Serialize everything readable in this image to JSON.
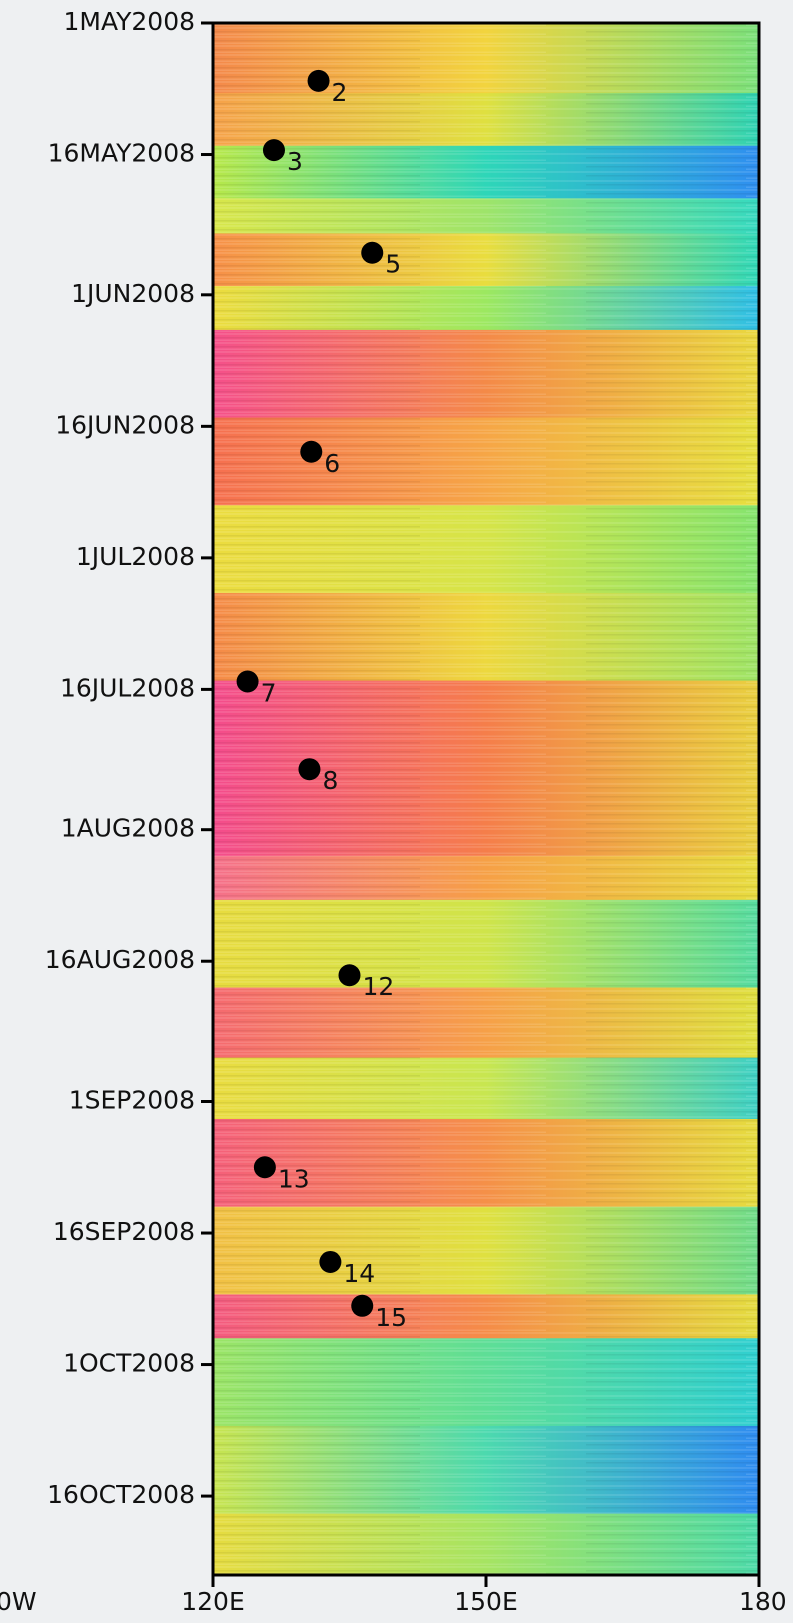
{
  "chart_data": {
    "type": "scatter",
    "x_cut_label": "0W",
    "x": [
      131.6,
      126.7,
      137.5,
      130.8,
      123.8,
      130.6,
      135.0,
      125.7,
      132.9,
      136.4
    ],
    "values": [
      6.6,
      14.5,
      26.2,
      48.9,
      75.1,
      85.1,
      108.6,
      130.5,
      141.3,
      146.3
    ],
    "point_labels": [
      "2",
      "3",
      "5",
      "6",
      "7",
      "8",
      "12",
      "13",
      "14",
      "15"
    ],
    "color": "#000000",
    "xlim": [
      120,
      180
    ],
    "xticks": [
      {
        "value": 120,
        "label": "120E"
      },
      {
        "value": 150,
        "label": "150E"
      },
      180
    ],
    "ylim": [
      0,
      177
    ],
    "yticks": [
      {
        "value": 0,
        "label": "1MAY2008"
      },
      {
        "value": 15,
        "label": "16MAY2008"
      },
      {
        "value": 31,
        "label": "1JUN2008"
      },
      {
        "value": 46,
        "label": "16JUN2008"
      },
      {
        "value": 61,
        "label": "1JUL2008"
      },
      {
        "value": 76,
        "label": "16JUL2008"
      },
      {
        "value": 92,
        "label": "1AUG2008"
      },
      {
        "value": 107,
        "label": "16AUG2008"
      },
      {
        "value": 123,
        "label": "1SEP2008"
      },
      {
        "value": 138,
        "label": "16SEP2008"
      },
      {
        "value": 153,
        "label": "1OCT2008"
      },
      {
        "value": 168,
        "label": "16OCT2008"
      }
    ],
    "y_inverted": true
  }
}
